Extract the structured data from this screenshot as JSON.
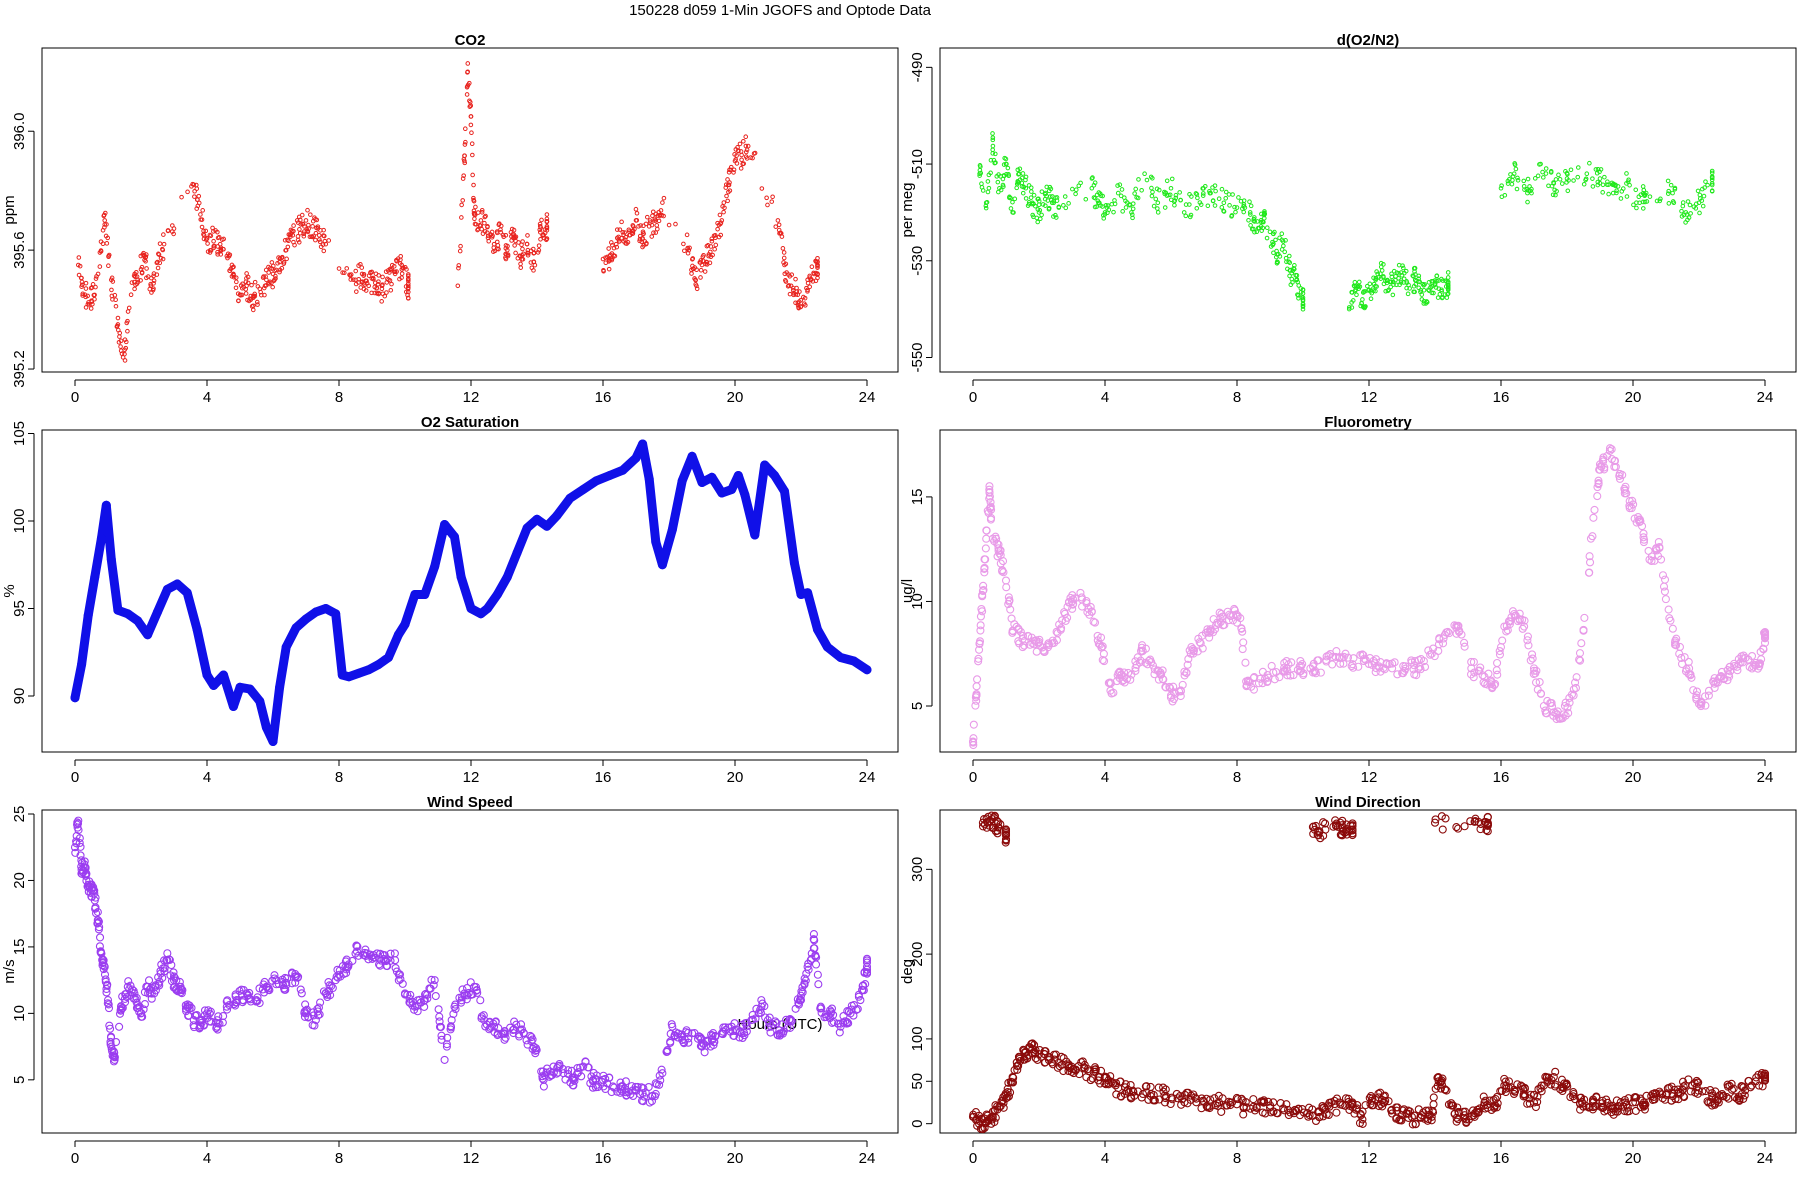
{
  "figure": {
    "title": "150228   d059   1-Min  JGOFS and Optode Data",
    "xlabel": "Hours (UTC)"
  },
  "chart_data": [
    {
      "id": "co2",
      "type": "scatter",
      "title": "CO2",
      "ylabel": "ppm",
      "color": "#e8231e",
      "marker": "small-circle",
      "xlim": [
        0,
        24
      ],
      "xticks": [
        0,
        4,
        8,
        12,
        16,
        20,
        24
      ],
      "ylim": [
        395.19,
        396.28
      ],
      "yticks": [
        395.2,
        395.6,
        396.0
      ],
      "ytick_labels": [
        "395.2",
        "395.6",
        "396.0"
      ],
      "x": [
        0.1,
        0.3,
        0.5,
        0.7,
        0.9,
        1.1,
        1.3,
        1.5,
        1.7,
        1.9,
        2.1,
        2.3,
        2.5,
        2.7,
        3.6,
        3.8,
        4.0,
        4.2,
        4.4,
        4.6,
        4.8,
        5.0,
        5.2,
        5.4,
        5.6,
        5.8,
        6.0,
        6.2,
        6.4,
        6.6,
        6.8,
        7.0,
        7.2,
        7.4,
        7.6,
        8.5,
        8.7,
        8.9,
        9.1,
        9.3,
        9.5,
        9.7,
        9.9,
        10.1,
        11.6,
        11.8,
        11.9,
        12.0,
        12.1,
        12.3,
        12.5,
        12.7,
        12.9,
        13.1,
        13.3,
        13.5,
        13.7,
        13.9,
        14.1,
        14.3,
        16.0,
        16.2,
        16.4,
        16.6,
        16.8,
        17.0,
        17.2,
        17.4,
        17.6,
        17.8,
        18.6,
        18.8,
        19.0,
        19.2,
        19.4,
        19.6,
        19.8,
        20.0,
        20.2,
        20.4,
        21.3,
        21.5,
        21.7,
        21.9,
        22.1,
        22.3,
        22.5
      ],
      "values": [
        395.55,
        395.45,
        395.43,
        395.52,
        395.7,
        395.5,
        395.35,
        395.25,
        395.45,
        395.5,
        395.58,
        395.48,
        395.56,
        395.62,
        395.82,
        395.72,
        395.64,
        395.63,
        395.62,
        395.58,
        395.52,
        395.45,
        395.48,
        395.44,
        395.47,
        395.5,
        395.52,
        395.56,
        395.6,
        395.65,
        395.67,
        395.7,
        395.68,
        395.65,
        395.62,
        395.5,
        395.52,
        395.48,
        395.49,
        395.47,
        395.5,
        395.52,
        395.55,
        395.48,
        395.48,
        395.9,
        396.2,
        396.05,
        395.72,
        395.7,
        395.68,
        395.62,
        395.66,
        395.6,
        395.64,
        395.58,
        395.62,
        395.56,
        395.66,
        395.68,
        395.57,
        395.58,
        395.62,
        395.66,
        395.65,
        395.7,
        395.64,
        395.68,
        395.7,
        395.76,
        395.6,
        395.5,
        395.55,
        395.58,
        395.65,
        395.7,
        395.82,
        395.9,
        395.92,
        395.95,
        395.7,
        395.55,
        395.48,
        395.45,
        395.42,
        395.5,
        395.55
      ]
    },
    {
      "id": "do2n2",
      "type": "scatter",
      "title": "d(O2/N2)",
      "ylabel": "per meg",
      "color": "#1fe81a",
      "marker": "small-circle",
      "xlim": [
        0,
        24
      ],
      "xticks": [
        0,
        4,
        8,
        12,
        16,
        20,
        24
      ],
      "ylim": [
        -553,
        -486
      ],
      "yticks": [
        -490,
        -510,
        -530,
        -550
      ],
      "ytick_labels": [
        "-490",
        "-510",
        "-530",
        "-550"
      ],
      "x": [
        0.2,
        0.4,
        0.6,
        0.8,
        1.0,
        1.2,
        1.4,
        1.6,
        1.8,
        2.0,
        2.2,
        2.4,
        2.6,
        3.6,
        3.8,
        4.0,
        4.4,
        4.8,
        5.2,
        5.6,
        6.0,
        6.4,
        6.8,
        7.2,
        7.6,
        8.0,
        8.4,
        8.6,
        8.8,
        9.0,
        9.2,
        9.4,
        9.6,
        9.8,
        10.0,
        11.4,
        11.6,
        11.8,
        12.0,
        12.2,
        12.4,
        12.6,
        12.8,
        13.0,
        13.2,
        13.4,
        13.6,
        13.8,
        14.0,
        14.2,
        14.4,
        16.0,
        16.4,
        16.8,
        17.2,
        17.6,
        18.0,
        18.6,
        19.0,
        19.4,
        19.8,
        20.2,
        20.4,
        21.2,
        21.6,
        22.0,
        22.4
      ],
      "values": [
        -512,
        -518,
        -505,
        -515,
        -510,
        -520,
        -512,
        -515,
        -518,
        -520,
        -516,
        -518,
        -519,
        -515,
        -518,
        -520,
        -516,
        -520,
        -512,
        -518,
        -515,
        -520,
        -517,
        -516,
        -518,
        -519,
        -520,
        -524,
        -522,
        -524,
        -528,
        -526,
        -532,
        -534,
        -538,
        -540,
        -536,
        -538,
        -536,
        -534,
        -532,
        -536,
        -534,
        -533,
        -535,
        -534,
        -537,
        -536,
        -535,
        -536,
        -535,
        -515,
        -512,
        -516,
        -510,
        -514,
        -513,
        -512,
        -513,
        -516,
        -514,
        -518,
        -516,
        -516,
        -520,
        -518,
        -514
      ]
    },
    {
      "id": "o2sat",
      "type": "line",
      "title": "O2 Saturation",
      "ylabel": "%",
      "color": "#1010e8",
      "marker": "thick-line",
      "xlim": [
        0,
        24
      ],
      "xticks": [
        0,
        4,
        8,
        12,
        16,
        20,
        24
      ],
      "ylim": [
        86.8,
        105.2
      ],
      "yticks": [
        90,
        95,
        100,
        105
      ],
      "ytick_labels": [
        "90",
        "95",
        "100",
        "105"
      ],
      "x": [
        0,
        0.2,
        0.4,
        0.6,
        0.8,
        0.95,
        1.1,
        1.3,
        1.6,
        1.9,
        2.2,
        2.5,
        2.8,
        3.1,
        3.4,
        3.7,
        4.0,
        4.2,
        4.5,
        4.8,
        5.0,
        5.3,
        5.6,
        5.8,
        6.0,
        6.2,
        6.4,
        6.7,
        7.0,
        7.3,
        7.6,
        7.9,
        8.1,
        8.3,
        8.6,
        8.9,
        9.2,
        9.5,
        9.8,
        10.0,
        10.3,
        10.6,
        10.9,
        11.2,
        11.5,
        11.7,
        12.0,
        12.3,
        12.5,
        12.8,
        13.1,
        13.4,
        13.7,
        14.0,
        14.3,
        14.6,
        15.0,
        15.4,
        15.8,
        16.2,
        16.6,
        17.0,
        17.2,
        17.4,
        17.6,
        17.8,
        18.1,
        18.4,
        18.7,
        19.0,
        19.3,
        19.6,
        19.9,
        20.1,
        20.3,
        20.6,
        20.9,
        21.2,
        21.5,
        21.8,
        22.0,
        22.2,
        22.5,
        22.8,
        23.2,
        23.6,
        24.0
      ],
      "values": [
        89.9,
        91.8,
        94.6,
        96.8,
        99.0,
        100.9,
        97.8,
        94.9,
        94.7,
        94.3,
        93.5,
        94.8,
        96.1,
        96.4,
        95.9,
        93.8,
        91.2,
        90.6,
        91.2,
        89.4,
        90.5,
        90.4,
        89.7,
        88.2,
        87.4,
        90.5,
        92.8,
        93.9,
        94.4,
        94.8,
        95.0,
        94.7,
        91.2,
        91.1,
        91.3,
        91.5,
        91.8,
        92.2,
        93.5,
        94.1,
        95.8,
        95.8,
        97.4,
        99.8,
        99.1,
        96.8,
        95.0,
        94.7,
        95.0,
        95.8,
        96.8,
        98.2,
        99.6,
        100.1,
        99.7,
        100.3,
        101.3,
        101.8,
        102.3,
        102.6,
        102.9,
        103.6,
        104.4,
        102.4,
        98.8,
        97.5,
        99.5,
        102.3,
        103.7,
        102.2,
        102.5,
        101.6,
        101.8,
        102.6,
        101.5,
        99.2,
        103.2,
        102.6,
        101.7,
        97.6,
        95.8,
        95.9,
        93.8,
        92.8,
        92.2,
        92.0,
        91.5
      ]
    },
    {
      "id": "fluor",
      "type": "scatter",
      "title": "Fluorometry",
      "ylabel": "ug/l",
      "color": "#e89ae8",
      "marker": "circle",
      "xlim": [
        0,
        24
      ],
      "xticks": [
        0,
        4,
        8,
        12,
        16,
        20,
        24
      ],
      "ylim": [
        2.8,
        18.2
      ],
      "yticks": [
        5,
        10,
        15
      ],
      "ytick_labels": [
        "5",
        "10",
        "15"
      ],
      "x": [
        0,
        0.1,
        0.2,
        0.3,
        0.4,
        0.5,
        0.6,
        0.8,
        1.0,
        1.2,
        1.5,
        1.8,
        2.1,
        2.4,
        2.7,
        3.0,
        3.3,
        3.6,
        3.9,
        4.2,
        4.5,
        4.8,
        5.1,
        5.4,
        5.7,
        6.0,
        6.3,
        6.6,
        6.9,
        7.2,
        7.5,
        7.8,
        8.1,
        8.3,
        8.7,
        9.1,
        9.5,
        9.9,
        10.3,
        10.7,
        11.1,
        11.5,
        11.9,
        12.3,
        12.7,
        13.1,
        13.5,
        13.9,
        14.3,
        14.7,
        15.1,
        15.5,
        15.8,
        16.1,
        16.4,
        16.7,
        17.0,
        17.3,
        17.6,
        17.9,
        18.2,
        18.5,
        18.8,
        19.0,
        19.3,
        19.6,
        19.9,
        20.2,
        20.5,
        20.8,
        21.1,
        21.4,
        21.7,
        22.0,
        22.3,
        22.6,
        22.9,
        23.2,
        23.5,
        23.8,
        24.0
      ],
      "values": [
        3.3,
        5.5,
        8.0,
        10.5,
        13.0,
        15.2,
        13.0,
        12.3,
        11.0,
        8.6,
        8.2,
        8.0,
        7.8,
        8.0,
        9.1,
        10.0,
        10.1,
        9.5,
        7.8,
        5.6,
        6.5,
        6.5,
        7.6,
        7.1,
        6.5,
        5.5,
        5.7,
        7.5,
        8.0,
        8.6,
        9.2,
        9.3,
        9.2,
        6.0,
        6.3,
        6.6,
        6.8,
        6.9,
        6.6,
        7.2,
        7.3,
        7.0,
        7.2,
        6.9,
        6.8,
        6.9,
        6.8,
        7.5,
        8.4,
        8.8,
        6.8,
        6.4,
        6.0,
        8.8,
        9.4,
        8.8,
        6.8,
        5.0,
        4.7,
        4.6,
        5.5,
        8.6,
        14.0,
        16.3,
        17.2,
        16.1,
        14.8,
        13.8,
        12.0,
        12.6,
        9.2,
        7.5,
        6.8,
        5.1,
        5.5,
        6.3,
        6.5,
        7.0,
        7.2,
        7.0,
        8.3
      ]
    },
    {
      "id": "wspd",
      "type": "scatter",
      "title": "Wind Speed",
      "ylabel": "m/s",
      "color": "#9b3df0",
      "marker": "circle",
      "xlim": [
        0,
        24
      ],
      "xticks": [
        0,
        4,
        8,
        12,
        16,
        20,
        24
      ],
      "ylim": [
        1.0,
        25.3
      ],
      "yticks": [
        5,
        10,
        15,
        20,
        25
      ],
      "ytick_labels": [
        "5",
        "10",
        "15",
        "20",
        "25"
      ],
      "x": [
        0,
        0.1,
        0.2,
        0.3,
        0.4,
        0.5,
        0.6,
        0.7,
        0.8,
        0.9,
        1.0,
        1.1,
        1.2,
        1.4,
        1.6,
        1.8,
        2.0,
        2.2,
        2.4,
        2.6,
        2.8,
        3.0,
        3.2,
        3.4,
        3.6,
        3.8,
        4.0,
        4.3,
        4.6,
        4.9,
        5.2,
        5.5,
        5.8,
        6.1,
        6.4,
        6.7,
        7.0,
        7.3,
        7.6,
        7.9,
        8.2,
        8.5,
        8.8,
        9.1,
        9.4,
        9.7,
        10.0,
        10.3,
        10.6,
        10.9,
        11.2,
        11.5,
        11.8,
        12.1,
        12.4,
        12.7,
        13.0,
        13.3,
        13.6,
        13.9,
        14.2,
        14.5,
        14.8,
        15.1,
        15.4,
        15.7,
        16.0,
        16.3,
        16.6,
        16.9,
        17.2,
        17.5,
        17.8,
        18.1,
        18.4,
        18.7,
        19.0,
        19.3,
        19.6,
        19.9,
        20.2,
        20.5,
        20.8,
        21.1,
        21.4,
        21.7,
        22.0,
        22.2,
        22.4,
        22.6,
        22.9,
        23.2,
        23.5,
        23.8,
        24.0
      ],
      "values": [
        22.5,
        24.5,
        20.8,
        21.0,
        19.5,
        19.3,
        18.5,
        17.0,
        14.5,
        13.5,
        11.0,
        7.5,
        6.5,
        10.5,
        12.0,
        11.5,
        10.0,
        12.0,
        11.5,
        13.0,
        14.0,
        12.5,
        12.0,
        10.5,
        9.5,
        9.0,
        10.0,
        9.0,
        10.5,
        11.0,
        11.5,
        11.0,
        12.0,
        12.5,
        12.3,
        12.8,
        10.0,
        9.5,
        11.5,
        12.5,
        13.5,
        14.5,
        14.8,
        14.2,
        14.0,
        14.0,
        11.5,
        10.5,
        11.0,
        12.5,
        6.5,
        10.5,
        11.5,
        12.0,
        9.5,
        9.0,
        8.5,
        8.8,
        8.5,
        7.5,
        5.0,
        6.0,
        5.5,
        5.0,
        6.0,
        5.0,
        5.0,
        4.5,
        4.5,
        4.2,
        4.0,
        3.8,
        5.5,
        9.0,
        8.0,
        8.5,
        7.5,
        8.0,
        8.5,
        9.0,
        8.5,
        9.5,
        10.5,
        9.0,
        8.5,
        9.5,
        11.0,
        13.5,
        15.5,
        10.5,
        10.0,
        9.0,
        10.0,
        11.0,
        13.5
      ]
    },
    {
      "id": "wdir",
      "type": "scatter",
      "title": "Wind Direction",
      "ylabel": "deg",
      "color": "#8b0a0a",
      "marker": "circle",
      "xlim": [
        0,
        24
      ],
      "xticks": [
        0,
        4,
        8,
        12,
        16,
        20,
        24
      ],
      "ylim": [
        -11,
        370
      ],
      "yticks": [
        0,
        50,
        100,
        200,
        300
      ],
      "ytick_labels": [
        "0",
        "50",
        "100",
        "200",
        "300"
      ],
      "x": [
        0,
        0.2,
        0.4,
        0.6,
        0.8,
        1.0,
        1.2,
        1.4,
        1.6,
        1.8,
        2.0,
        2.3,
        2.6,
        2.9,
        3.2,
        3.5,
        3.8,
        4.1,
        4.4,
        4.7,
        5.0,
        5.4,
        5.8,
        6.2,
        6.6,
        7.0,
        7.4,
        7.8,
        8.2,
        8.6,
        9.0,
        9.4,
        9.8,
        10.2,
        10.5,
        10.8,
        11.2,
        11.5,
        11.8,
        12.1,
        12.4,
        12.7,
        13.0,
        13.3,
        13.6,
        13.9,
        14.1,
        14.3,
        14.6,
        14.9,
        15.2,
        15.5,
        15.8,
        16.1,
        16.4,
        16.7,
        17.0,
        17.3,
        17.6,
        17.9,
        18.2,
        18.5,
        18.8,
        19.1,
        19.4,
        19.7,
        20.0,
        20.3,
        20.6,
        20.9,
        21.2,
        21.5,
        21.8,
        22.1,
        22.4,
        22.7,
        23.0,
        23.3,
        23.6,
        24.0,
        0.3,
        0.5,
        0.7,
        1.0,
        10.3,
        10.5,
        11.0,
        11.2,
        11.5,
        14.0,
        15.2,
        15.6
      ],
      "values": [
        8,
        3,
        2,
        8,
        20,
        30,
        55,
        78,
        85,
        88,
        82,
        75,
        72,
        70,
        68,
        62,
        55,
        48,
        42,
        40,
        38,
        35,
        33,
        30,
        28,
        26,
        24,
        22,
        20,
        20,
        19,
        18,
        15,
        10,
        8,
        20,
        22,
        25,
        5,
        30,
        28,
        12,
        10,
        8,
        10,
        8,
        55,
        40,
        12,
        10,
        8,
        25,
        20,
        45,
        40,
        35,
        25,
        45,
        55,
        42,
        35,
        20,
        25,
        20,
        18,
        20,
        25,
        22,
        28,
        30,
        35,
        40,
        45,
        38,
        30,
        35,
        40,
        35,
        45,
        55,
        355,
        357,
        354,
        340,
        350,
        345,
        352,
        349,
        347,
        355,
        356,
        353
      ]
    }
  ]
}
